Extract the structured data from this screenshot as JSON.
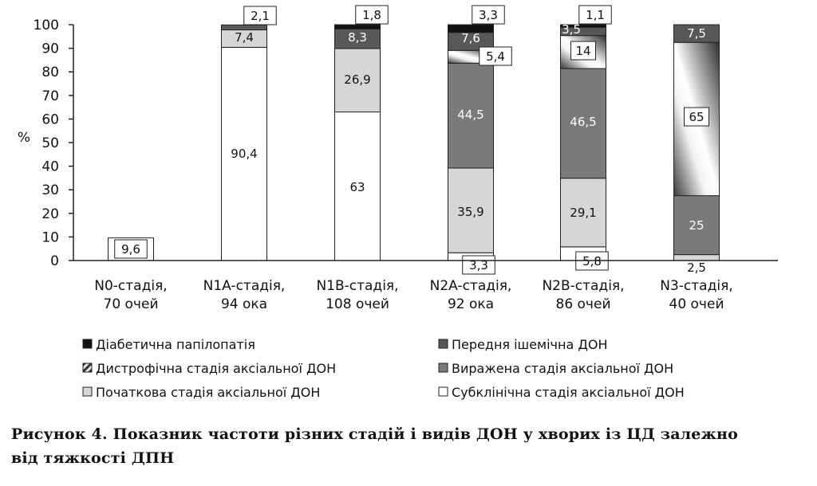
{
  "chart_data": {
    "type": "bar",
    "stacked": true,
    "ylabel": "%",
    "ylim": [
      0,
      100
    ],
    "yticks": [
      0,
      10,
      20,
      30,
      40,
      50,
      60,
      70,
      80,
      90,
      100
    ],
    "categories": [
      [
        "N0-стадія,",
        "70 очей"
      ],
      [
        "N1A-стадія,",
        "94 ока"
      ],
      [
        "N1B-стадія,",
        "108 очей"
      ],
      [
        "N2A-стадія,",
        "92 ока"
      ],
      [
        "N2B-стадія,",
        "86 очей"
      ],
      [
        "N3-стадія,",
        "40 очей"
      ]
    ],
    "series": [
      {
        "name": "Субклінічна стадія аксіальної ДОН",
        "color": "#ffffff",
        "pattern": "none",
        "values": [
          9.6,
          90.4,
          63,
          3.3,
          5.8,
          0
        ],
        "labels": [
          "9,6",
          "90,4",
          "63",
          "3,3",
          "5,8",
          ""
        ]
      },
      {
        "name": "Початкова стадія аксіальної ДОН",
        "color": "#d6d6d6",
        "pattern": "none",
        "values": [
          0,
          7.4,
          26.9,
          35.9,
          29.1,
          2.5
        ],
        "labels": [
          "",
          "7,4",
          "26,9",
          "35,9",
          "29,1",
          "2,5"
        ]
      },
      {
        "name": "Виражена стадія аксіальної ДОН",
        "color": "#7a7a7a",
        "pattern": "none",
        "values": [
          0,
          0,
          0,
          44.5,
          46.5,
          25
        ],
        "labels": [
          "",
          "",
          "",
          "44,5",
          "46,5",
          "25"
        ]
      },
      {
        "name": "Дистрофічна стадія аксіальної ДОН",
        "color": "#999999",
        "pattern": "gradient-diagonal",
        "values": [
          0,
          0,
          0,
          5.4,
          14,
          65
        ],
        "labels": [
          "",
          "",
          "",
          "5,4",
          "14",
          "65"
        ]
      },
      {
        "name": "Передня ішемічна ДОН",
        "color": "#585858",
        "pattern": "none",
        "values": [
          0,
          2.1,
          8.3,
          7.6,
          3.5,
          7.5
        ],
        "labels": [
          "",
          "2,1",
          "8,3",
          "7,6",
          "3,5",
          "7,5"
        ]
      },
      {
        "name": "Діабетична папілопатія",
        "color": "#111111",
        "pattern": "none",
        "values": [
          0,
          0,
          1.8,
          3.3,
          1.1,
          0
        ],
        "labels": [
          "",
          "",
          "1,8",
          "3,3",
          "1,1",
          ""
        ]
      }
    ],
    "legend": {
      "placement": "bottom",
      "order": [
        "Діабетична папілопатія",
        "Передня ішемічна ДОН",
        "Дистрофічна стадія аксіальної ДОН",
        "Виражена стадія аксіальної ДОН",
        "Початкова стадія аксіальної ДОН",
        "Субклінічна стадія аксіальної ДОН"
      ]
    },
    "grid": false
  },
  "caption": {
    "line1": "Рисунок 4. Показник частоти різних стадій і видів ДОН у хворих із ЦД залежно",
    "line2": "від тяжкості ДПН"
  }
}
